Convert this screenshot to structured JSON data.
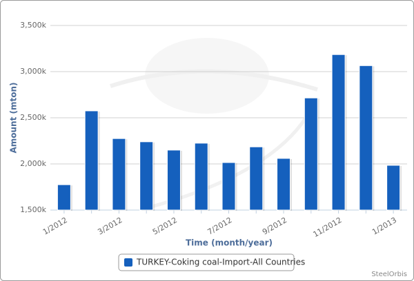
{
  "chart_data": {
    "type": "bar",
    "y_label": "Amount (mton)",
    "x_label": "Time (month/year)",
    "categories": [
      "1/2012",
      null,
      "3/2012",
      null,
      "5/2012",
      null,
      "7/2012",
      null,
      "9/2012",
      null,
      "11/2012",
      null,
      "1/2013"
    ],
    "series": [
      {
        "name": "TURKEY-Coking coal-Import-All Countries",
        "color": "#1560bd",
        "values": [
          1775,
          2575,
          2275,
          2240,
          2150,
          2225,
          2015,
          2185,
          2060,
          2715,
          3185,
          3065,
          1985
        ]
      }
    ],
    "ylim": [
      1500,
      3500
    ],
    "yticks": [
      {
        "value": 1500,
        "label": "1,500k"
      },
      {
        "value": 2000,
        "label": "2,000k"
      },
      {
        "value": 2500,
        "label": "2,500k"
      },
      {
        "value": 3000,
        "label": "3,000k"
      },
      {
        "value": 3500,
        "label": "3,500k"
      }
    ],
    "grid": true,
    "credit": "SteelOrbis"
  }
}
